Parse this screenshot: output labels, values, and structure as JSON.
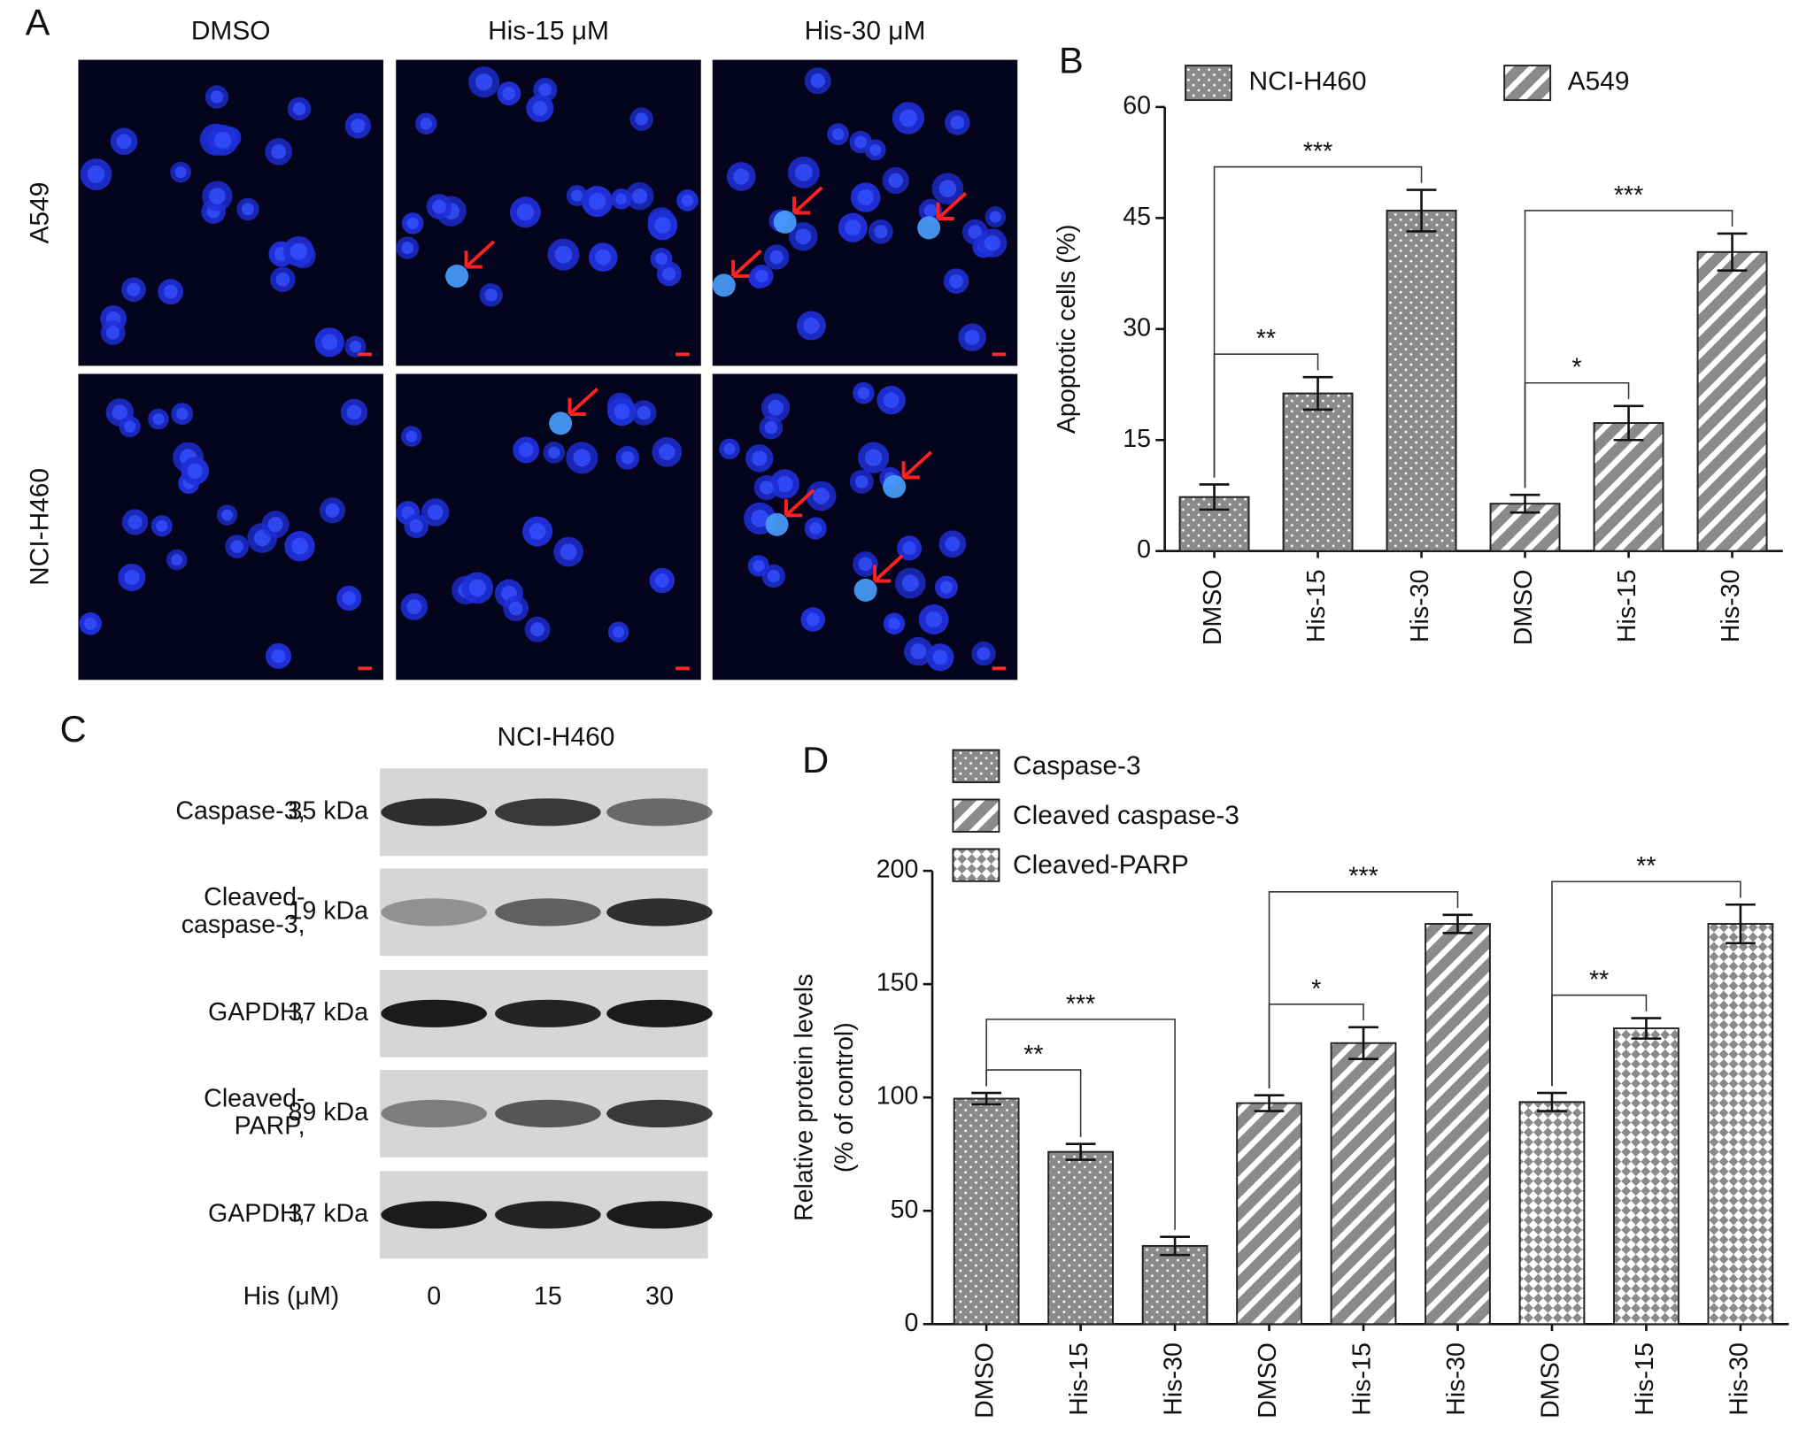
{
  "panel_labels": [
    "A",
    "B",
    "C",
    "D"
  ],
  "panel_a": {
    "columns": [
      "DMSO",
      "His-15 μM",
      "His-30 μM"
    ],
    "rows": [
      "A549",
      "NCI-H460"
    ]
  },
  "panel_c": {
    "title": "NCI-H460",
    "bands": [
      {
        "name": [
          "Caspase-3,"
        ],
        "size": "35 kDa"
      },
      {
        "name": [
          "Cleaved-",
          "caspase-3,"
        ],
        "size": "19 kDa"
      },
      {
        "name": [
          "GAPDH,"
        ],
        "size": "37 kDa"
      },
      {
        "name": [
          "Cleaved-",
          "PARP,"
        ],
        "size": "89 kDa"
      },
      {
        "name": [
          "GAPDH,"
        ],
        "size": "37 kDa"
      }
    ],
    "x_label": "His (μM)",
    "lanes": [
      "0",
      "15",
      "30"
    ]
  },
  "chart_data": [
    {
      "type": "bar",
      "ylabel": [
        "Apoptotic cells (%)"
      ],
      "categories": [
        "DMSO",
        "His-15",
        "His-30",
        "DMSO",
        "His-15",
        "His-30"
      ],
      "series": [
        {
          "name": "NCI-H460",
          "color": "#8a8a8a",
          "pattern": "dots",
          "values": [
            7.3,
            21.3,
            46,
            null,
            null,
            null
          ],
          "errors": [
            1.7,
            2.2,
            2.8,
            null,
            null,
            null
          ]
        },
        {
          "name": "A549",
          "color": "#8a8a8a",
          "pattern": "stripes",
          "values": [
            null,
            null,
            null,
            6.4,
            17.3,
            40.4
          ],
          "errors": [
            null,
            null,
            null,
            1.2,
            2.3,
            2.5
          ]
        }
      ],
      "annotations": [
        {
          "label": "**",
          "between": [
            0,
            1
          ]
        },
        {
          "label": "***",
          "between": [
            0,
            2
          ]
        },
        {
          "label": "*",
          "between": [
            3,
            4
          ]
        },
        {
          "label": "***",
          "between": [
            3,
            5
          ]
        }
      ],
      "ylim": [
        0,
        60
      ],
      "yticks": [
        0,
        15,
        30,
        45,
        60
      ],
      "legend": "horizontal"
    },
    {
      "type": "bar",
      "ylabel": [
        "Relative protein levels",
        "(% of control)"
      ],
      "categories": [
        "DMSO",
        "His-15",
        "His-30",
        "DMSO",
        "His-15",
        "His-30",
        "DMSO",
        "His-15",
        "His-30"
      ],
      "series": [
        {
          "name": "Caspase-3",
          "color": "#8a8a8a",
          "pattern": "dots",
          "values": [
            99.5,
            76,
            34.5,
            null,
            null,
            null,
            null,
            null,
            null
          ],
          "errors": [
            2.5,
            3.5,
            4,
            null,
            null,
            null,
            null,
            null,
            null
          ]
        },
        {
          "name": "Cleaved caspase-3",
          "color": "#8a8a8a",
          "pattern": "stripes",
          "values": [
            null,
            null,
            null,
            97.5,
            124,
            176.6,
            null,
            null,
            null
          ],
          "errors": [
            null,
            null,
            null,
            3.5,
            7,
            4,
            null,
            null,
            null
          ]
        },
        {
          "name": "Cleaved-PARP",
          "color": "#8a8a8a",
          "pattern": "diamonds",
          "values": [
            null,
            null,
            null,
            null,
            null,
            null,
            98,
            130.5,
            176.6
          ],
          "errors": [
            null,
            null,
            null,
            null,
            null,
            null,
            4,
            4.5,
            8.5
          ]
        }
      ],
      "annotations": [
        {
          "label": "**",
          "between": [
            0,
            1
          ]
        },
        {
          "label": "***",
          "between": [
            0,
            2
          ]
        },
        {
          "label": "*",
          "between": [
            3,
            4
          ]
        },
        {
          "label": "***",
          "between": [
            3,
            5
          ]
        },
        {
          "label": "**",
          "between": [
            6,
            7
          ]
        },
        {
          "label": "**",
          "between": [
            6,
            8
          ]
        }
      ],
      "ylim": [
        0,
        200
      ],
      "yticks": [
        0,
        50,
        100,
        150,
        200
      ],
      "legend": "vertical"
    }
  ]
}
